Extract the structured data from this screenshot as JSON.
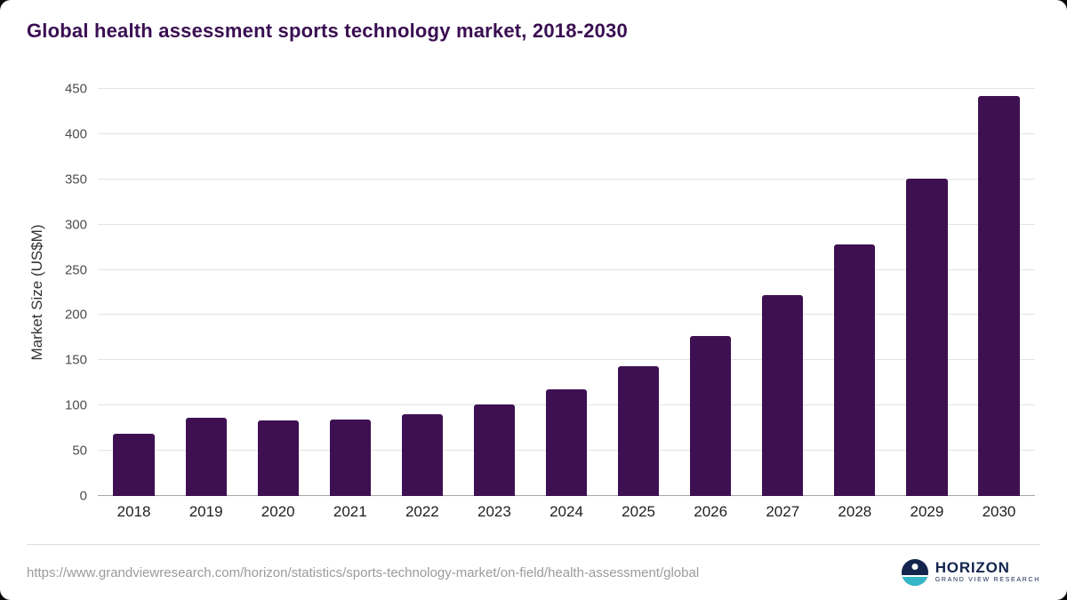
{
  "title": "Global health assessment sports technology market, 2018-2030",
  "chart_data": {
    "type": "bar",
    "categories": [
      "2018",
      "2019",
      "2020",
      "2021",
      "2022",
      "2023",
      "2024",
      "2025",
      "2026",
      "2027",
      "2028",
      "2029",
      "2030"
    ],
    "values": [
      69,
      86,
      84,
      85,
      90,
      101,
      118,
      143,
      177,
      222,
      278,
      351,
      442
    ],
    "title": "Global health assessment sports technology market, 2018-2030",
    "xlabel": "",
    "ylabel": "Market Size (US$M)",
    "ylim": [
      0,
      450
    ],
    "ytick_step": 50,
    "yticks": [
      0,
      50,
      100,
      150,
      200,
      250,
      300,
      350,
      400,
      450
    ],
    "grid": "horizontal",
    "legend": "none",
    "bar_color": "#3e1051"
  },
  "footer": {
    "source_url": "https://www.grandviewresearch.com/horizon/statistics/sports-technology-market/on-field/health-assessment/global",
    "logo_title": "HORIZON",
    "logo_subtitle": "GRAND VIEW RESEARCH"
  }
}
